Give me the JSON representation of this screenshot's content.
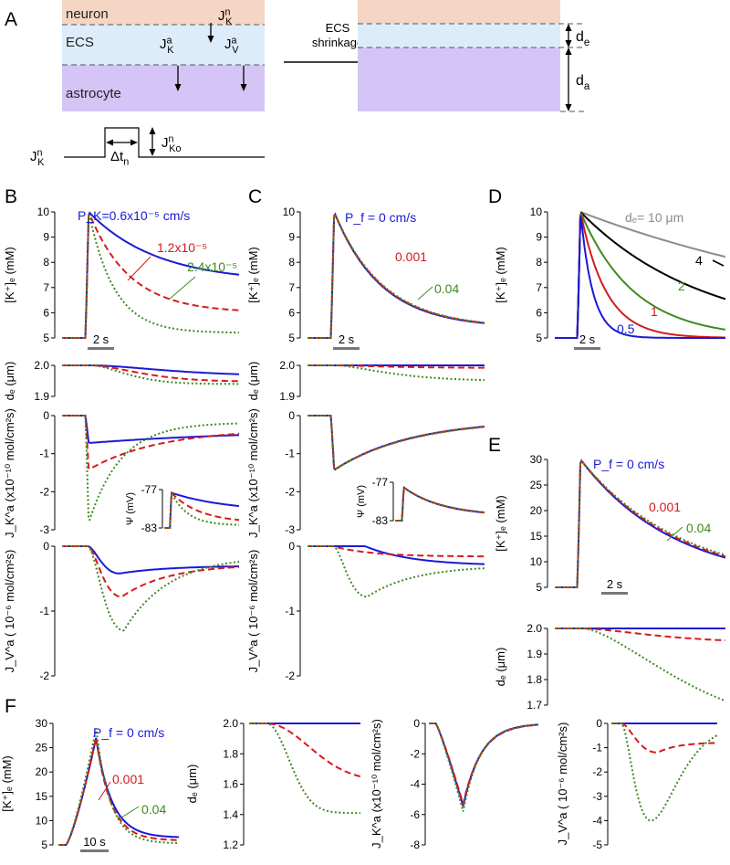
{
  "colors": {
    "blue": "#1a1ad6",
    "red": "#d61a1a",
    "green": "#3f8a20",
    "gray": "#8c8c8c",
    "black": "#000000",
    "neuron": "#f5d5c3",
    "ecs": "#dcecfa",
    "astro": "#d5c5f7"
  },
  "labels": {
    "A": "A",
    "B": "B",
    "C": "C",
    "D": "D",
    "E": "E",
    "F": "F",
    "neuron": "neuron",
    "ecs": "ECS",
    "astrocyte": "astrocyte",
    "shrink1": "ECS",
    "shrink2": "shrinkage",
    "de": "d",
    "de_sub": "e",
    "da": "d",
    "da_sub": "a",
    "JK": "J",
    "K": "K",
    "n": "n",
    "a": "a",
    "V": "V",
    "o": "o",
    "dtn": "Δt",
    "dtn_sub": "n"
  },
  "ylabels": {
    "ke": "[K⁺]ₑ (mM)",
    "de": "dₑ (μm)",
    "jka": "J_K^a (x10⁻¹⁰ mol/cm²s)",
    "jva": "J_V^a ( 10⁻⁶ mol/cm²s)",
    "psi": "Ψ (mV)"
  },
  "scalebars": {
    "s2": "2 s",
    "s10": "10 s"
  },
  "panelB": {
    "legend": [
      "P_K=0.6x10⁻⁵ cm/s",
      "1.2x10⁻⁵",
      "2.4x10⁻⁵"
    ]
  },
  "panelC": {
    "legend": [
      "P_f = 0 cm/s",
      "0.001",
      "0.04"
    ]
  },
  "panelD": {
    "legend": [
      "dₑ= 10 μm",
      "4",
      "2",
      "1",
      "0.5"
    ]
  },
  "panelE": {
    "legend": [
      "P_f = 0 cm/s",
      "0.001",
      "0.04"
    ]
  },
  "panelF": {
    "legend": [
      "P_f = 0 cm/s",
      "0.001",
      "0.04"
    ]
  },
  "ticks": {
    "ke10": [
      "10",
      "9",
      "8",
      "7",
      "6",
      "5"
    ],
    "de2": [
      "2.0",
      "1.9"
    ],
    "jka": [
      "0",
      "-1",
      "-2",
      "-3"
    ],
    "jva": [
      "0",
      "-1",
      "-2"
    ],
    "psi": [
      "-77",
      "-83"
    ],
    "ke30": [
      "30",
      "25",
      "20",
      "15",
      "10",
      "5"
    ],
    "deE": [
      "2.0",
      "1.9",
      "1.8",
      "1.7"
    ],
    "deF": [
      "2.0",
      "1.8",
      "1.6",
      "1.4",
      "1.2"
    ],
    "jkaF": [
      "0",
      "-2",
      "-4",
      "-6",
      "-8"
    ],
    "jvaF": [
      "0",
      "-1",
      "-2",
      "-3",
      "-4",
      "-5"
    ]
  },
  "chart_data": [
    {
      "panel": "B",
      "type": "line",
      "ylabel": "[K+]e (mM)",
      "ylim": [
        5,
        10
      ],
      "series": [
        {
          "name": "PK=0.6x10^-5 cm/s",
          "peak": 10,
          "end": 7.5
        },
        {
          "name": "1.2x10^-5",
          "peak": 10,
          "end": 6.2
        },
        {
          "name": "2.4x10^-5",
          "peak": 10,
          "end": 5.3
        }
      ]
    },
    {
      "panel": "B",
      "type": "line",
      "ylabel": "de (μm)",
      "ylim": [
        1.9,
        2.0
      ],
      "series": [
        {
          "name": "0.6x10^-5",
          "end": 1.967
        },
        {
          "name": "1.2x10^-5",
          "end": 1.948
        },
        {
          "name": "2.4x10^-5",
          "end": 1.94
        }
      ]
    },
    {
      "panel": "B",
      "type": "line",
      "ylabel": "JK^a (x10^-10 mol/cm2s)",
      "ylim": [
        -3,
        0
      ],
      "series": [
        {
          "name": "0.6x10^-5",
          "min": -0.7
        },
        {
          "name": "1.2x10^-5",
          "min": -1.4
        },
        {
          "name": "2.4x10^-5",
          "min": -2.8
        }
      ]
    },
    {
      "panel": "B",
      "type": "line",
      "ylabel": "Ψ (mV)",
      "ylim": [
        -83,
        -77
      ]
    },
    {
      "panel": "B",
      "type": "line",
      "ylabel": "JV^a (10^-6 mol/cm2s)",
      "ylim": [
        -2,
        0
      ],
      "series": [
        {
          "name": "0.6x10^-5",
          "min": -0.42
        },
        {
          "name": "1.2x10^-5",
          "min": -0.78
        },
        {
          "name": "2.4x10^-5",
          "min": -1.3
        }
      ]
    },
    {
      "panel": "C",
      "type": "line",
      "ylabel": "[K+]e (mM)",
      "ylim": [
        5,
        10
      ],
      "series": [
        {
          "name": "Pf = 0 cm/s"
        },
        {
          "name": "0.001"
        },
        {
          "name": "0.04"
        }
      ]
    },
    {
      "panel": "C",
      "type": "line",
      "ylabel": "de (μm)",
      "ylim": [
        1.9,
        2.0
      ],
      "series": [
        {
          "name": "0",
          "end": 2.0
        },
        {
          "name": "0.001",
          "end": 1.99
        },
        {
          "name": "0.04",
          "end": 1.95
        }
      ]
    },
    {
      "panel": "C",
      "type": "line",
      "ylabel": "JV^a (10^-6 mol/cm2s)",
      "ylim": [
        -2,
        0
      ],
      "series": [
        {
          "name": "0",
          "min": 0
        },
        {
          "name": "0.001",
          "min": -0.15
        },
        {
          "name": "0.04",
          "min": -0.78
        }
      ]
    },
    {
      "panel": "D",
      "type": "line",
      "ylabel": "[K+]e (mM)",
      "ylim": [
        5,
        10
      ],
      "series": [
        {
          "name": "de=10 μm",
          "end": 8.8
        },
        {
          "name": "4",
          "end": 7.5
        },
        {
          "name": "2",
          "end": 6.2
        },
        {
          "name": "1",
          "end": 5.3
        },
        {
          "name": "0.5",
          "end": 5.0
        }
      ]
    },
    {
      "panel": "E",
      "type": "line",
      "ylabel": "[K+]e (mM)",
      "ylim": [
        5,
        30
      ],
      "series": [
        {
          "name": "Pf = 0 cm/s",
          "peak": 30,
          "end": 10.3
        },
        {
          "name": "0.001"
        },
        {
          "name": "0.04"
        }
      ]
    },
    {
      "panel": "E",
      "type": "line",
      "ylabel": "de (μm)",
      "ylim": [
        1.7,
        2.0
      ],
      "series": [
        {
          "name": "0",
          "end": 2.0
        },
        {
          "name": "0.001",
          "end": 1.95
        },
        {
          "name": "0.04",
          "end": 1.72
        }
      ]
    },
    {
      "panel": "F",
      "type": "line",
      "ylabel": "[K+]e (mM)",
      "ylim": [
        5,
        30
      ],
      "series": [
        {
          "name": "Pf = 0 cm/s",
          "peak": 27
        },
        {
          "name": "0.001",
          "peak": 27
        },
        {
          "name": "0.04",
          "peak": 29
        }
      ]
    },
    {
      "panel": "F",
      "type": "line",
      "ylabel": "de (μm)",
      "ylim": [
        1.2,
        2.0
      ],
      "series": [
        {
          "name": "0",
          "end": 2.0
        },
        {
          "name": "0.001",
          "end": 1.64
        },
        {
          "name": "0.04",
          "end": 1.41
        }
      ]
    },
    {
      "panel": "F",
      "type": "line",
      "ylabel": "JK^a (x10^-10 mol/cm2s)",
      "ylim": [
        -8,
        0
      ],
      "series": [
        {
          "name": "all",
          "min": -5.5
        }
      ]
    },
    {
      "panel": "F",
      "type": "line",
      "ylabel": "JV^a (10^-6 mol/cm2s)",
      "ylim": [
        -5,
        0
      ],
      "series": [
        {
          "name": "0",
          "min": 0
        },
        {
          "name": "0.001",
          "min": -1.2
        },
        {
          "name": "0.04",
          "min": -4.0
        }
      ]
    }
  ]
}
